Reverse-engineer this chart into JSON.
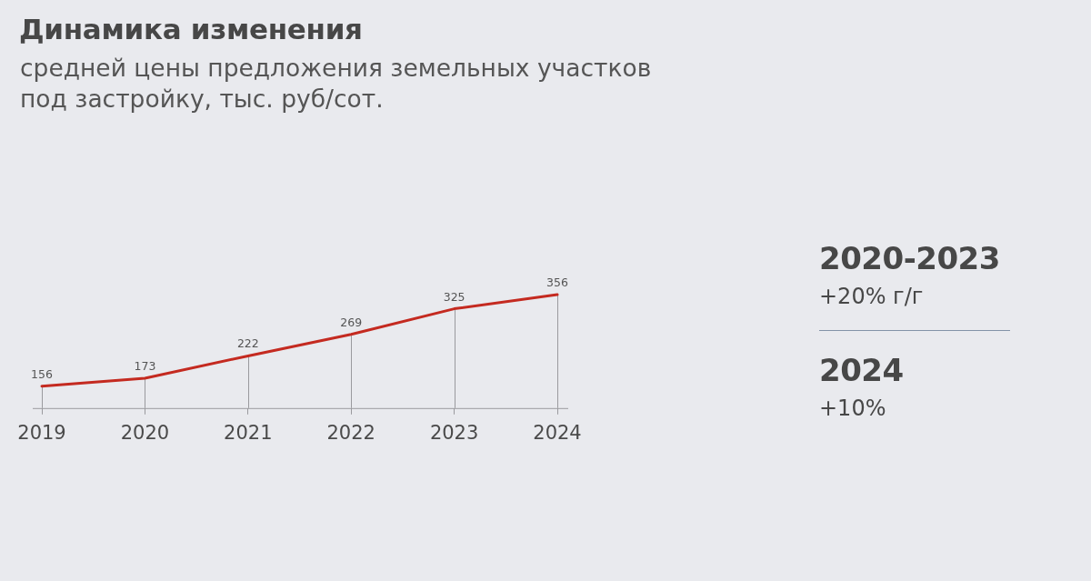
{
  "chart_data": {
    "type": "line",
    "title": "Динамика изменения",
    "subtitle": "средней цены предложения земельных участков под застройку, тыс. руб/сот.",
    "categories": [
      "2019",
      "2020",
      "2021",
      "2022",
      "2023",
      "2024"
    ],
    "series": [
      {
        "color": "#c42a20",
        "values": [
          156,
          173,
          222,
          269,
          325,
          356
        ]
      }
    ],
    "data_labels": true,
    "marker": "none",
    "line_style": "solid",
    "tick_labels": "x",
    "grid": "x",
    "annotations": [
      "2020-2023",
      "+20% г/г",
      "2024",
      "+10%"
    ]
  }
}
